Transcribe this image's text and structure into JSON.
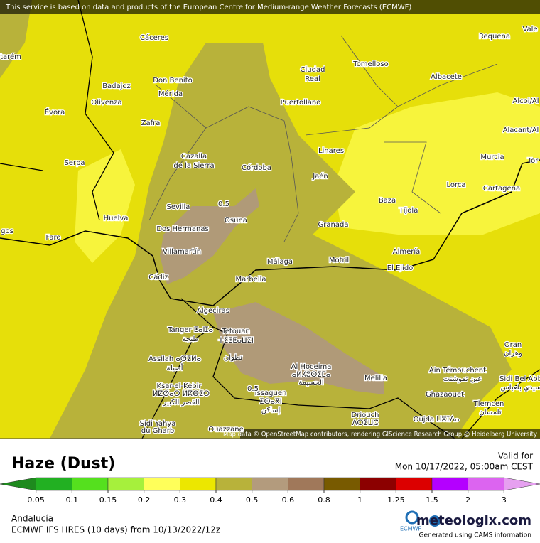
{
  "banner": "This service is based on data and products of the European Centre for Medium-range Weather Forecasts (ECMWF)",
  "map": {
    "cities": [
      "Cáceres",
      "Requena",
      "Vale",
      "tarém",
      "Tomelloso",
      "Ciudad",
      "Real",
      "Don Benito",
      "Badajoz",
      "Mérida",
      "Albacete",
      "Évora",
      "Olivenza",
      "Puertollano",
      "Alcoi/Al",
      "Zafra",
      "Alacant/Al",
      "Cazalla",
      "de la Sierra",
      "Linares",
      "Murcia",
      "Serpa",
      "Córdoba",
      "Tor",
      "Jaén",
      "Lorca",
      "Cartagena",
      "Baza",
      "Sevilla",
      "Tíjola",
      "Huelva",
      "Osuna",
      "Granada",
      "Dos Hermanas",
      "Faro",
      "gos",
      "Almería",
      "Villamartín",
      "Motril",
      "Málaga",
      "El Ejido",
      "Cádiz",
      "Marbella",
      "Algeciras",
      "Tanger ⵟⴰⵏⵊⴰ",
      "طنجة",
      "Tetouan",
      "ⵜⵉⵟⵟⴰⵡⵉⵏ",
      "تطوان",
      "Assilah ⴰⵚⵉⵍⴰ",
      "أصيلة",
      "Al Hoceima",
      "ⴰⵍⵃⵓⵙⵉⵎⴰ",
      "الحسيمة",
      "Melilla",
      "Oran",
      "وهران",
      "Ain Témouchent",
      "عين تموشنت",
      "Sidi Bel Abb",
      "سيدي بلعباس",
      "Ksar-el-Kebir",
      "ⵍⵇⵚⴰⵔ ⵍⴽⴱⵉⵔ",
      "القصر الكبير",
      "Issaguen",
      "ⵉⵙⴰⴳⵏ",
      "إساكن",
      "Ghazaouet",
      "Tlemcen",
      "تلمسان",
      "Driouch",
      "ⴷⵔⵉⵡⵛ",
      "Sidi Yahya",
      "du Gharb",
      "Ouazzane",
      "Oujda ⵡⵓⵊⴷⴰ"
    ],
    "contour_labels": [
      "0.5",
      "0.5"
    ],
    "attribution": "Map data © OpenStreetMap contributors, rendering GIScience Research Group @ Heidelberg University"
  },
  "legend": {
    "title": "Haze (Dust)",
    "ticks": [
      0.05,
      0.1,
      0.15,
      0.2,
      0.3,
      0.4,
      0.5,
      0.6,
      0.8,
      1,
      1.25,
      1.5,
      2,
      3
    ],
    "colors": [
      "#1e8a1e",
      "#22b022",
      "#55e01e",
      "#a6f03c",
      "#ffff5a",
      "#ece700",
      "#b8b23a",
      "#b39b7d",
      "#a0785a",
      "#785a00",
      "#8c0000",
      "#dc0000",
      "#b400ff",
      "#dc64f0",
      "#e6a0f0"
    ]
  },
  "valid": {
    "label": "Valid for",
    "time": "Mon 10/17/2022, 05:00am CEST"
  },
  "footer": {
    "region": "Andalucía",
    "model": "ECMWF IFS HRES (10 days) from 10/13/2022/12z",
    "ecmwf": "ECMWF",
    "brand": "meteologix.com",
    "note": "Generated using CAMS information"
  }
}
